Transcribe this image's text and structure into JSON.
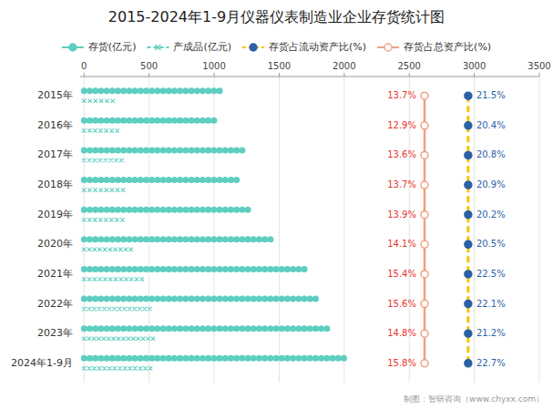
{
  "chart_data": {
    "type": "bar",
    "orientation": "horizontal",
    "title": "2015-2024年1-9月仪器仪表制造业企业存货统计图",
    "categories": [
      "2015年",
      "2016年",
      "2017年",
      "2018年",
      "2019年",
      "2020年",
      "2021年",
      "2022年",
      "2023年",
      "2024年1-9月"
    ],
    "series": [
      {
        "name": "存货(亿元)",
        "color": "#5ECEC0",
        "marker": "circle",
        "values": [
          1080,
          1010,
          1230,
          1180,
          1280,
          1470,
          1730,
          1820,
          1900,
          2000
        ]
      },
      {
        "name": "产成品(亿元)",
        "color": "#5ECEC0",
        "marker": "x",
        "values": [
          220,
          255,
          290,
          300,
          295,
          360,
          445,
          505,
          530,
          510
        ]
      },
      {
        "name": "存货占流动资产比(%)",
        "type": "text",
        "color": "#F5C400",
        "line_style": "dashed",
        "marker": "circle",
        "values": [
          21.5,
          20.4,
          20.8,
          20.9,
          20.2,
          20.5,
          22.5,
          22.1,
          21.2,
          22.7
        ],
        "value_labels": [
          "21.5%",
          "20.4%",
          "20.8%",
          "20.9%",
          "20.2%",
          "20.5%",
          "22.5%",
          "22.1%",
          "21.2%",
          "22.7%"
        ]
      },
      {
        "name": "存货占总资产比(%)",
        "type": "text",
        "color": "#F0A080",
        "line_style": "solid",
        "marker": "circle",
        "values": [
          13.7,
          12.9,
          13.6,
          13.7,
          13.9,
          14.1,
          15.4,
          15.6,
          14.8,
          15.8
        ],
        "value_labels": [
          "13.7%",
          "12.9%",
          "13.6%",
          "13.7%",
          "13.9%",
          "14.1%",
          "15.4%",
          "15.6%",
          "14.8%",
          "15.8%"
        ]
      }
    ],
    "xlim": [
      -30,
      3500
    ],
    "xticks": [
      0,
      500,
      1000,
      1500,
      2000,
      2500,
      3000,
      3500
    ],
    "grid": true,
    "legend": "top",
    "annotations": [
      "制图：智研咨询（www.chyxx.com）"
    ]
  }
}
